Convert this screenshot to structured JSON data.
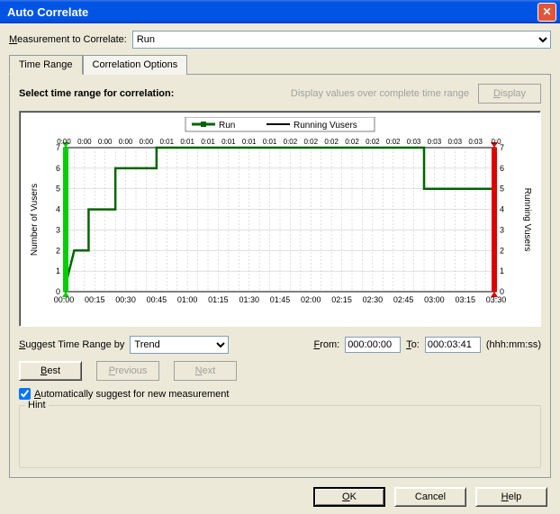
{
  "window": {
    "title": "Auto Correlate"
  },
  "measurement": {
    "label": "Measurement to Correlate:",
    "label_uchar": "M",
    "value": "Run"
  },
  "tabs": [
    {
      "label": "Time Range",
      "active": true
    },
    {
      "label": "Correlation Options",
      "active": false
    }
  ],
  "panel": {
    "instruction": "Select time range for correlation:",
    "disabled_hint": "Display values over complete time range",
    "display_btn": "Display",
    "display_btn_u": "D"
  },
  "chart": {
    "type": "line",
    "legend": [
      "Run",
      "Running Vusers"
    ],
    "series_colors": [
      "#006400",
      "#000000"
    ],
    "background_color": "#ffffff",
    "grid_color": "#c0c0c0",
    "minor_grid_dash": "2,2",
    "left_handle_color": "#00d000",
    "right_handle_color": "#e00000",
    "y_left_label": "Number of Vusers",
    "y_right_label": "Running Vusers",
    "y_ticks": [
      0,
      1,
      2,
      3,
      4,
      5,
      6,
      7
    ],
    "ylim": [
      0,
      7
    ],
    "x_ticks": [
      "00:00",
      "00:15",
      "00:30",
      "00:45",
      "01:00",
      "01:15",
      "01:30",
      "01:45",
      "02:00",
      "02:15",
      "02:30",
      "02:45",
      "03:00",
      "03:15",
      "03:30"
    ],
    "xlim": [
      0,
      210
    ],
    "top_x_ticks": [
      "0:00",
      "0:00",
      "0:00",
      "0:00",
      "0:00",
      "0:01",
      "0:01",
      "0:01",
      "0:01",
      "0:01",
      "0:01",
      "0:02",
      "0:02",
      "0:02",
      "0:02",
      "0:02",
      "0:02",
      "0:03",
      "0:03",
      "0:03",
      "0:03",
      "0:0"
    ],
    "data_points": [
      [
        0,
        0
      ],
      [
        5,
        2
      ],
      [
        12,
        2
      ],
      [
        12,
        4
      ],
      [
        25,
        4
      ],
      [
        25,
        6
      ],
      [
        45,
        6
      ],
      [
        45,
        7
      ],
      [
        175,
        7
      ],
      [
        175,
        5
      ],
      [
        210,
        5
      ]
    ],
    "line_width": 2.5,
    "axis_fontsize": 9
  },
  "suggest": {
    "label": "Suggest Time Range by",
    "label_u": "S",
    "dropdown_value": "Trend"
  },
  "from_to": {
    "from_label": "From:",
    "from_u": "F",
    "from_value": "000:00:00",
    "to_label": "To:",
    "to_u": "T",
    "to_value": "000:03:41",
    "hint": "(hhh:mm:ss)"
  },
  "nav_buttons": {
    "best": "Best",
    "best_u": "B",
    "previous": "Previous",
    "previous_u": "P",
    "next": "Next",
    "next_u": "N",
    "prev_enabled": false,
    "next_enabled": false
  },
  "checkbox": {
    "checked": true,
    "label": "Automatically suggest for new measurement",
    "label_u": "A"
  },
  "hint_group": "Hint",
  "footer": {
    "ok": "OK",
    "ok_u": "O",
    "cancel": "Cancel",
    "help": "Help",
    "help_u": "H"
  }
}
